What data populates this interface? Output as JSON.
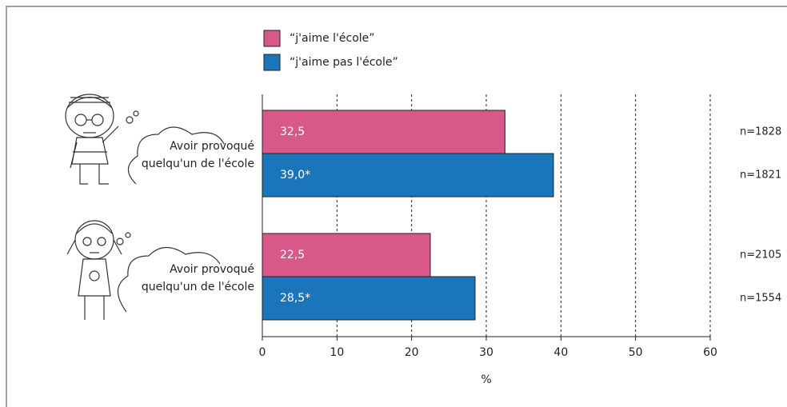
{
  "chart_data": {
    "type": "hbar",
    "categories": [
      [
        "Avoir provoqué",
        "quelqu'un de l'école"
      ],
      [
        "Avoir provoqué",
        "quelqu'un de l'école"
      ]
    ],
    "series": [
      {
        "name": "“j'aime l'école”",
        "color": "#d9588a",
        "values": [
          32.5,
          22.5
        ],
        "value_labels": [
          "32,5",
          "22,5"
        ],
        "n_labels": [
          "n=1828",
          "n=2105"
        ]
      },
      {
        "name": "“j'aime pas l'école”",
        "color": "#1b75bb",
        "values": [
          39.0,
          28.5
        ],
        "value_labels": [
          "39,0*",
          "28,5*"
        ],
        "n_labels": [
          "n=1821",
          "n=1554"
        ]
      }
    ],
    "xlim": [
      0,
      60
    ],
    "xticks": [
      0,
      10,
      20,
      30,
      40,
      50,
      60
    ],
    "xlabel": "%",
    "grid": true
  }
}
